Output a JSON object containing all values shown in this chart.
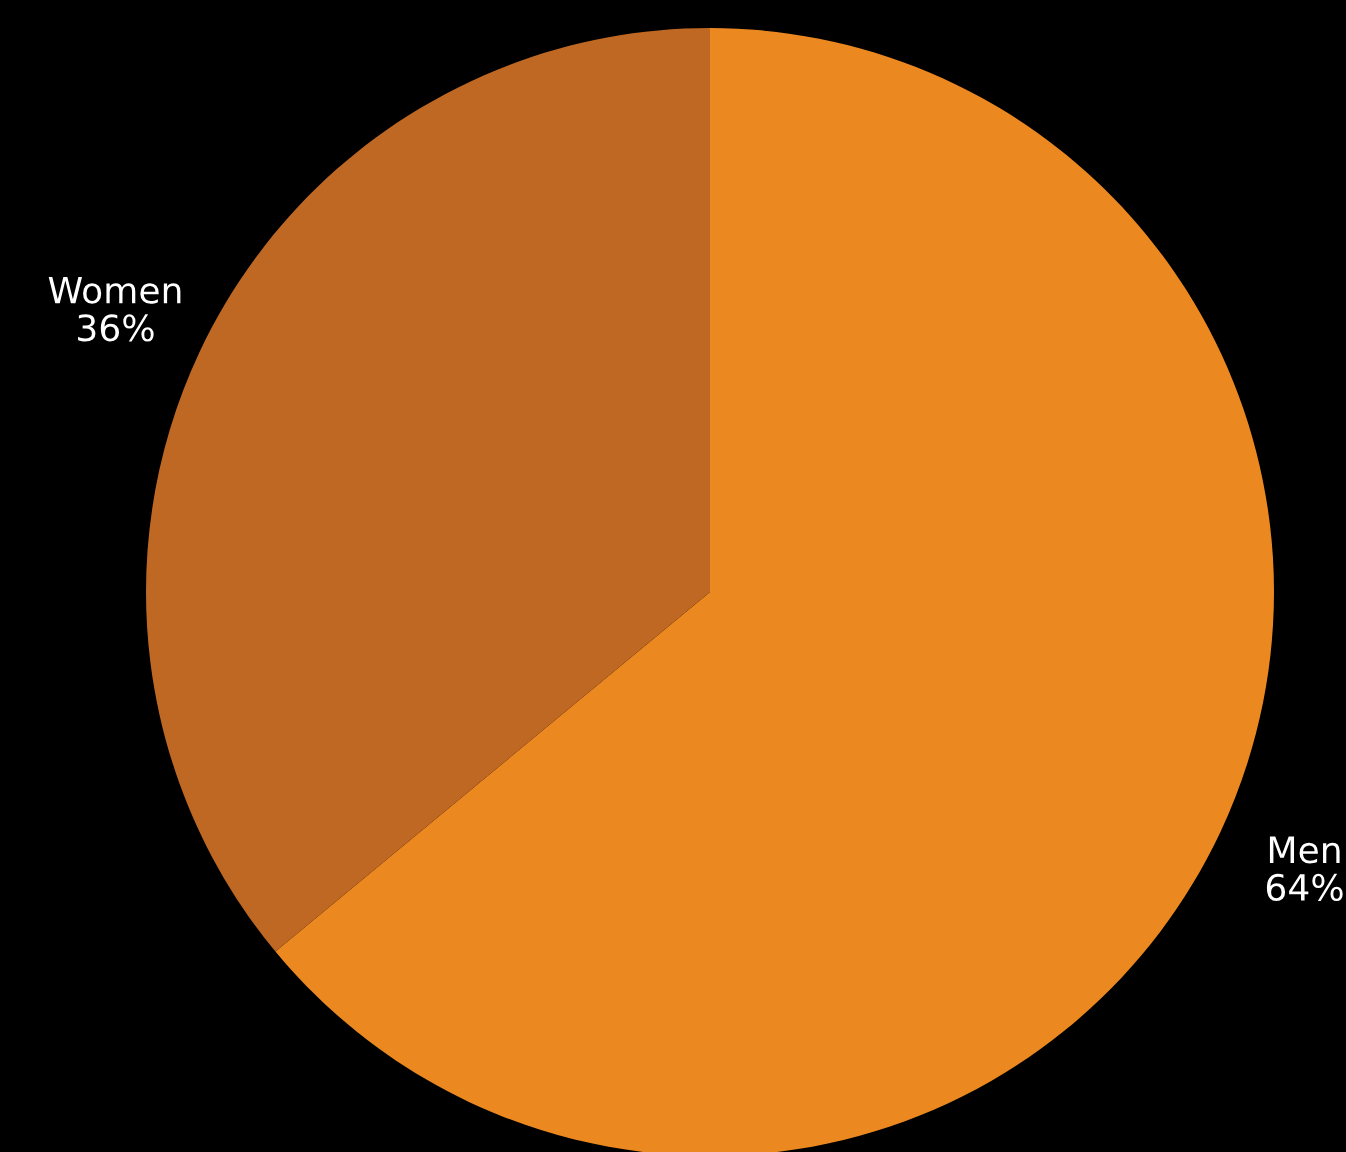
{
  "chart_data": {
    "type": "pie",
    "categories": [
      "Men",
      "Women"
    ],
    "values": [
      64,
      36
    ],
    "value_labels": [
      "64%",
      "36%"
    ],
    "colors": [
      "#ec8820",
      "#bf6823"
    ],
    "legend": false
  }
}
